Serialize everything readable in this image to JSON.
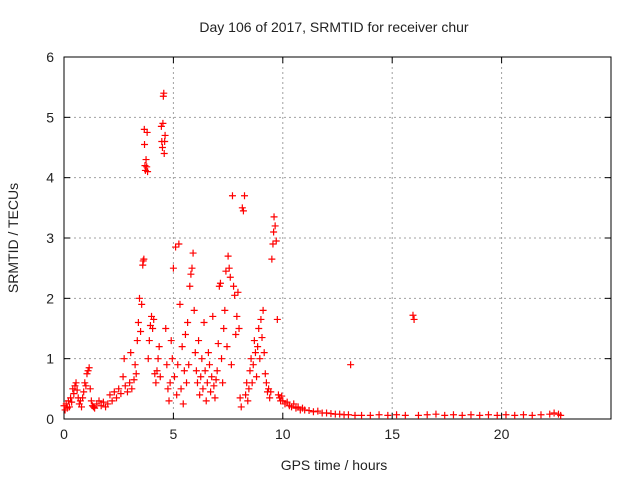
{
  "chart_data": {
    "type": "scatter",
    "title": "Day 106 of 2017, SRMTID for receiver chur",
    "xlabel": "GPS time / hours",
    "ylabel": "SRMTID / TECUs",
    "xlim": [
      0,
      25
    ],
    "ylim": [
      0,
      6
    ],
    "xticks": [
      0,
      5,
      10,
      15,
      20
    ],
    "yticks": [
      0,
      1,
      2,
      3,
      4,
      5,
      6
    ],
    "grid": true,
    "marker": "plus",
    "color": "#ff0000",
    "series": [
      {
        "name": "SRMTID",
        "points": [
          [
            0.0,
            0.22
          ],
          [
            0.05,
            0.15
          ],
          [
            0.1,
            0.25
          ],
          [
            0.15,
            0.18
          ],
          [
            0.2,
            0.3
          ],
          [
            0.25,
            0.2
          ],
          [
            0.3,
            0.35
          ],
          [
            0.35,
            0.28
          ],
          [
            0.4,
            0.5
          ],
          [
            0.45,
            0.42
          ],
          [
            0.5,
            0.55
          ],
          [
            0.55,
            0.6
          ],
          [
            0.6,
            0.48
          ],
          [
            0.65,
            0.35
          ],
          [
            0.7,
            0.25
          ],
          [
            0.75,
            0.3
          ],
          [
            0.8,
            0.2
          ],
          [
            0.85,
            0.35
          ],
          [
            0.9,
            0.45
          ],
          [
            0.95,
            0.6
          ],
          [
            1.0,
            0.55
          ],
          [
            1.05,
            0.75
          ],
          [
            1.1,
            0.8
          ],
          [
            1.15,
            0.85
          ],
          [
            1.2,
            0.5
          ],
          [
            1.25,
            0.3
          ],
          [
            1.3,
            0.22
          ],
          [
            1.35,
            0.2
          ],
          [
            1.4,
            0.18
          ],
          [
            1.5,
            0.25
          ],
          [
            1.6,
            0.3
          ],
          [
            1.7,
            0.22
          ],
          [
            1.8,
            0.28
          ],
          [
            1.9,
            0.2
          ],
          [
            2.0,
            0.25
          ],
          [
            2.1,
            0.4
          ],
          [
            2.2,
            0.3
          ],
          [
            2.3,
            0.45
          ],
          [
            2.4,
            0.35
          ],
          [
            2.5,
            0.5
          ],
          [
            2.6,
            0.42
          ],
          [
            2.7,
            0.7
          ],
          [
            2.75,
            1.0
          ],
          [
            2.8,
            0.55
          ],
          [
            2.9,
            0.45
          ],
          [
            3.0,
            0.6
          ],
          [
            3.05,
            1.1
          ],
          [
            3.1,
            0.5
          ],
          [
            3.2,
            0.65
          ],
          [
            3.25,
            0.9
          ],
          [
            3.3,
            0.75
          ],
          [
            3.35,
            1.3
          ],
          [
            3.4,
            1.6
          ],
          [
            3.45,
            2.0
          ],
          [
            3.5,
            1.45
          ],
          [
            3.55,
            1.9
          ],
          [
            3.6,
            2.55
          ],
          [
            3.62,
            2.62
          ],
          [
            3.65,
            2.65
          ],
          [
            3.67,
            4.8
          ],
          [
            3.68,
            4.55
          ],
          [
            3.7,
            4.2
          ],
          [
            3.72,
            4.12
          ],
          [
            3.75,
            4.3
          ],
          [
            3.78,
            4.18
          ],
          [
            3.8,
            4.75
          ],
          [
            3.82,
            4.1
          ],
          [
            3.85,
            1.0
          ],
          [
            3.9,
            1.3
          ],
          [
            3.95,
            1.55
          ],
          [
            4.0,
            1.7
          ],
          [
            4.05,
            1.5
          ],
          [
            4.1,
            1.65
          ],
          [
            4.15,
            0.75
          ],
          [
            4.2,
            0.6
          ],
          [
            4.25,
            0.8
          ],
          [
            4.3,
            1.0
          ],
          [
            4.35,
            1.2
          ],
          [
            4.4,
            0.7
          ],
          [
            4.45,
            4.85
          ],
          [
            4.47,
            4.6
          ],
          [
            4.5,
            4.5
          ],
          [
            4.52,
            4.9
          ],
          [
            4.54,
            5.35
          ],
          [
            4.56,
            5.4
          ],
          [
            4.58,
            4.4
          ],
          [
            4.6,
            4.6
          ],
          [
            4.62,
            4.7
          ],
          [
            4.65,
            1.5
          ],
          [
            4.7,
            0.9
          ],
          [
            4.75,
            0.5
          ],
          [
            4.8,
            0.3
          ],
          [
            4.85,
            0.6
          ],
          [
            4.9,
            1.3
          ],
          [
            4.95,
            1.0
          ],
          [
            5.0,
            2.5
          ],
          [
            5.05,
            0.7
          ],
          [
            5.1,
            2.85
          ],
          [
            5.15,
            0.4
          ],
          [
            5.2,
            0.9
          ],
          [
            5.25,
            2.9
          ],
          [
            5.3,
            1.9
          ],
          [
            5.35,
            0.5
          ],
          [
            5.4,
            1.2
          ],
          [
            5.45,
            0.25
          ],
          [
            5.5,
            0.8
          ],
          [
            5.55,
            1.4
          ],
          [
            5.6,
            0.6
          ],
          [
            5.65,
            1.6
          ],
          [
            5.7,
            0.9
          ],
          [
            5.75,
            2.2
          ],
          [
            5.8,
            2.4
          ],
          [
            5.85,
            2.5
          ],
          [
            5.9,
            2.75
          ],
          [
            5.95,
            1.8
          ],
          [
            6.0,
            1.1
          ],
          [
            6.05,
            0.8
          ],
          [
            6.1,
            0.6
          ],
          [
            6.15,
            1.3
          ],
          [
            6.2,
            0.4
          ],
          [
            6.25,
            0.7
          ],
          [
            6.3,
            1.0
          ],
          [
            6.35,
            0.5
          ],
          [
            6.4,
            1.6
          ],
          [
            6.45,
            0.8
          ],
          [
            6.5,
            0.3
          ],
          [
            6.55,
            0.6
          ],
          [
            6.6,
            1.1
          ],
          [
            6.65,
            0.9
          ],
          [
            6.7,
            0.45
          ],
          [
            6.75,
            0.7
          ],
          [
            6.8,
            1.7
          ],
          [
            6.85,
            0.55
          ],
          [
            6.9,
            0.35
          ],
          [
            6.95,
            0.65
          ],
          [
            7.0,
            0.8
          ],
          [
            7.05,
            1.25
          ],
          [
            7.1,
            2.2
          ],
          [
            7.15,
            2.25
          ],
          [
            7.2,
            1.0
          ],
          [
            7.25,
            0.6
          ],
          [
            7.3,
            1.5
          ],
          [
            7.35,
            1.8
          ],
          [
            7.4,
            2.45
          ],
          [
            7.45,
            1.2
          ],
          [
            7.5,
            2.7
          ],
          [
            7.55,
            2.5
          ],
          [
            7.6,
            2.35
          ],
          [
            7.65,
            0.9
          ],
          [
            7.7,
            3.7
          ],
          [
            7.75,
            2.2
          ],
          [
            7.8,
            2.05
          ],
          [
            7.85,
            1.4
          ],
          [
            7.9,
            1.7
          ],
          [
            7.95,
            2.1
          ],
          [
            8.0,
            1.5
          ],
          [
            8.05,
            0.35
          ],
          [
            8.1,
            0.2
          ],
          [
            8.15,
            3.5
          ],
          [
            8.2,
            3.45
          ],
          [
            8.25,
            3.7
          ],
          [
            8.3,
            0.4
          ],
          [
            8.35,
            0.6
          ],
          [
            8.4,
            0.3
          ],
          [
            8.45,
            0.5
          ],
          [
            8.5,
            0.8
          ],
          [
            8.55,
            1.0
          ],
          [
            8.6,
            0.6
          ],
          [
            8.65,
            0.9
          ],
          [
            8.7,
            1.3
          ],
          [
            8.75,
            1.1
          ],
          [
            8.8,
            0.7
          ],
          [
            8.85,
            1.2
          ],
          [
            8.9,
            1.5
          ],
          [
            8.95,
            1.0
          ],
          [
            9.0,
            1.65
          ],
          [
            9.05,
            1.35
          ],
          [
            9.1,
            1.8
          ],
          [
            9.15,
            1.1
          ],
          [
            9.2,
            0.75
          ],
          [
            9.25,
            0.6
          ],
          [
            9.3,
            0.45
          ],
          [
            9.35,
            0.5
          ],
          [
            9.4,
            0.35
          ],
          [
            9.45,
            0.45
          ],
          [
            9.5,
            2.65
          ],
          [
            9.55,
            2.9
          ],
          [
            9.58,
            3.1
          ],
          [
            9.6,
            3.35
          ],
          [
            9.65,
            3.2
          ],
          [
            9.7,
            2.95
          ],
          [
            9.75,
            1.65
          ],
          [
            9.8,
            0.4
          ],
          [
            9.85,
            0.35
          ],
          [
            9.9,
            0.3
          ],
          [
            9.95,
            0.38
          ],
          [
            10.0,
            0.3
          ],
          [
            10.1,
            0.25
          ],
          [
            10.2,
            0.28
          ],
          [
            10.3,
            0.22
          ],
          [
            10.4,
            0.2
          ],
          [
            10.5,
            0.25
          ],
          [
            10.6,
            0.18
          ],
          [
            10.7,
            0.2
          ],
          [
            10.8,
            0.15
          ],
          [
            10.9,
            0.18
          ],
          [
            11.0,
            0.15
          ],
          [
            11.2,
            0.14
          ],
          [
            11.4,
            0.12
          ],
          [
            11.6,
            0.13
          ],
          [
            11.8,
            0.1
          ],
          [
            12.0,
            0.1
          ],
          [
            12.2,
            0.09
          ],
          [
            12.4,
            0.08
          ],
          [
            12.6,
            0.08
          ],
          [
            12.8,
            0.07
          ],
          [
            13.0,
            0.07
          ],
          [
            13.1,
            0.9
          ],
          [
            13.3,
            0.06
          ],
          [
            13.6,
            0.06
          ],
          [
            14.0,
            0.06
          ],
          [
            14.4,
            0.07
          ],
          [
            14.8,
            0.06
          ],
          [
            15.2,
            0.07
          ],
          [
            15.6,
            0.06
          ],
          [
            15.95,
            1.72
          ],
          [
            16.0,
            1.65
          ],
          [
            16.2,
            0.06
          ],
          [
            16.6,
            0.07
          ],
          [
            17.0,
            0.08
          ],
          [
            17.4,
            0.06
          ],
          [
            17.8,
            0.07
          ],
          [
            18.2,
            0.06
          ],
          [
            18.6,
            0.07
          ],
          [
            19.0,
            0.06
          ],
          [
            19.4,
            0.07
          ],
          [
            19.8,
            0.06
          ],
          [
            20.2,
            0.07
          ],
          [
            20.6,
            0.06
          ],
          [
            21.0,
            0.07
          ],
          [
            21.4,
            0.06
          ],
          [
            21.8,
            0.07
          ],
          [
            22.2,
            0.08
          ],
          [
            22.4,
            0.1
          ],
          [
            22.6,
            0.08
          ],
          [
            22.7,
            0.06
          ]
        ]
      }
    ]
  }
}
